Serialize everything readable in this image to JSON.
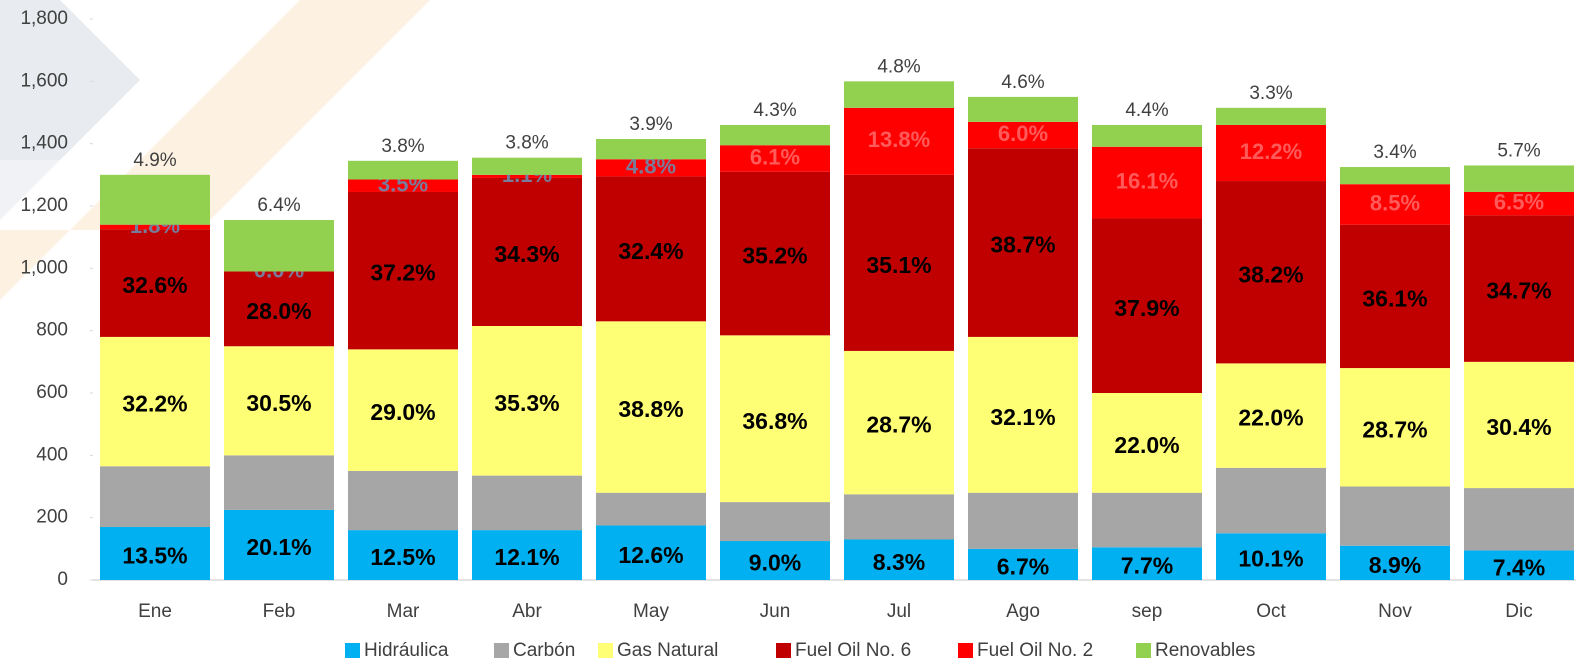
{
  "chart_data": {
    "type": "stacked_bar",
    "categories": [
      "Ene",
      "Feb",
      "Mar",
      "Abr",
      "May",
      "Jun",
      "Jul",
      "Ago",
      "sep",
      "Oct",
      "Nov",
      "Dic"
    ],
    "series": [
      {
        "name": "Hidráulica",
        "color": "#00b0f0",
        "values": [
          170,
          225,
          160,
          160,
          175,
          125,
          130,
          100,
          105,
          150,
          110,
          95
        ],
        "percent_labels": [
          "13.5%",
          "20.1%",
          "12.5%",
          "12.1%",
          "12.6%",
          "9.0%",
          "8.3%",
          "6.7%",
          "7.7%",
          "10.1%",
          "8.9%",
          "7.4%"
        ]
      },
      {
        "name": "Carbón",
        "color": "#a6a6a6",
        "values": [
          195,
          175,
          190,
          175,
          105,
          125,
          145,
          180,
          175,
          210,
          190,
          200
        ]
      },
      {
        "name": "Gas Natural",
        "color": "#ffff75",
        "values": [
          415,
          350,
          390,
          480,
          550,
          535,
          460,
          500,
          320,
          335,
          380,
          405
        ],
        "percent_labels": [
          "32.2%",
          "30.5%",
          "29.0%",
          "35.3%",
          "38.8%",
          "36.8%",
          "28.7%",
          "32.1%",
          "22.0%",
          "22.0%",
          "28.7%",
          "30.4%"
        ]
      },
      {
        "name": "Fuel Oil No. 6",
        "color": "#c00000",
        "values": [
          345,
          240,
          505,
          475,
          465,
          525,
          565,
          605,
          560,
          585,
          460,
          470
        ],
        "percent_labels": [
          "32.6%",
          "28.0%",
          "37.2%",
          "34.3%",
          "32.4%",
          "35.2%",
          "35.1%",
          "38.7%",
          "37.9%",
          "38.2%",
          "36.1%",
          "34.7%"
        ]
      },
      {
        "name": "Fuel Oil No. 2",
        "color": "#ff0000",
        "values": [
          15,
          0,
          40,
          10,
          55,
          85,
          215,
          85,
          230,
          180,
          130,
          75
        ],
        "percent_labels": [
          "1.8%",
          "0.0%",
          "3.5%",
          "1.1%",
          "4.8%",
          "6.1%",
          "13.8%",
          "6.0%",
          "16.1%",
          "12.2%",
          "8.5%",
          "6.5%"
        ]
      },
      {
        "name": "Renovables",
        "color": "#92d050",
        "values": [
          160,
          165,
          60,
          55,
          65,
          65,
          85,
          80,
          70,
          55,
          55,
          85
        ],
        "percent_labels": [
          "4.9%",
          "6.4%",
          "3.8%",
          "3.8%",
          "3.9%",
          "4.3%",
          "4.8%",
          "4.6%",
          "4.4%",
          "3.3%",
          "3.4%",
          "5.7%"
        ]
      }
    ],
    "ylim": [
      0,
      1800
    ],
    "yticks": [
      0,
      200,
      400,
      600,
      800,
      {
        "value": 1000,
        "label": "1,000"
      },
      {
        "value": 1200,
        "label": "1,200"
      },
      {
        "value": 1400,
        "label": "1,400"
      },
      {
        "value": 1600,
        "label": "1,600"
      },
      {
        "value": 1800,
        "label": "1,800"
      }
    ],
    "legend": "bottom"
  }
}
